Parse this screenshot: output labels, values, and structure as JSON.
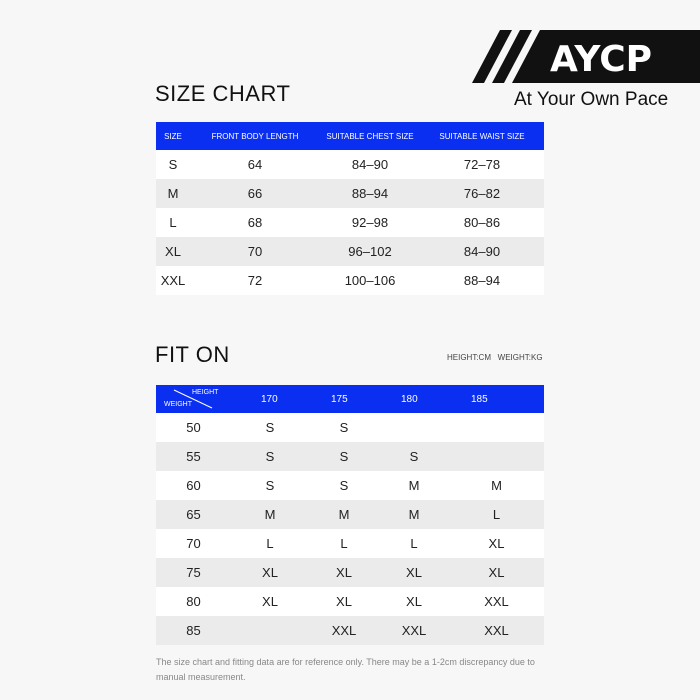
{
  "brand": {
    "logo_text": "AYCP",
    "tagline": "At Your Own Pace"
  },
  "size_chart": {
    "title": "SIZE CHART",
    "headers": [
      "SIZE",
      "FRONT BODY LENGTH",
      "SUITABLE CHEST SIZE",
      "SUITABLE WAIST SIZE"
    ],
    "rows": [
      [
        "S",
        "64",
        "84–90",
        "72–78"
      ],
      [
        "M",
        "66",
        "88–94",
        "76–82"
      ],
      [
        "L",
        "68",
        "92–98",
        "80–86"
      ],
      [
        "XL",
        "70",
        "96–102",
        "84–90"
      ],
      [
        "XXL",
        "72",
        "100–106",
        "88–94"
      ]
    ]
  },
  "fit_on": {
    "title": "FIT ON",
    "units": "HEIGHT:CM   WEIGHT:KG",
    "corner_top": "HEIGHT",
    "corner_bottom": "WEIGHT",
    "heights": [
      "170",
      "175",
      "180",
      "185"
    ],
    "rows": [
      [
        "50",
        "S",
        "S",
        "",
        ""
      ],
      [
        "55",
        "S",
        "S",
        "S",
        ""
      ],
      [
        "60",
        "S",
        "S",
        "M",
        "M"
      ],
      [
        "65",
        "M",
        "M",
        "M",
        "L"
      ],
      [
        "70",
        "L",
        "L",
        "L",
        "XL"
      ],
      [
        "75",
        "XL",
        "XL",
        "XL",
        "XL"
      ],
      [
        "80",
        "XL",
        "XL",
        "XL",
        "XXL"
      ],
      [
        "85",
        "",
        "XXL",
        "XXL",
        "XXL"
      ]
    ]
  },
  "note": "The size chart and fitting data are for reference only. There may be a 1-2cm discrepancy due to manual measurement.",
  "colors": {
    "header_blue": "#0b2ff0",
    "stripe": "#ebebeb"
  }
}
